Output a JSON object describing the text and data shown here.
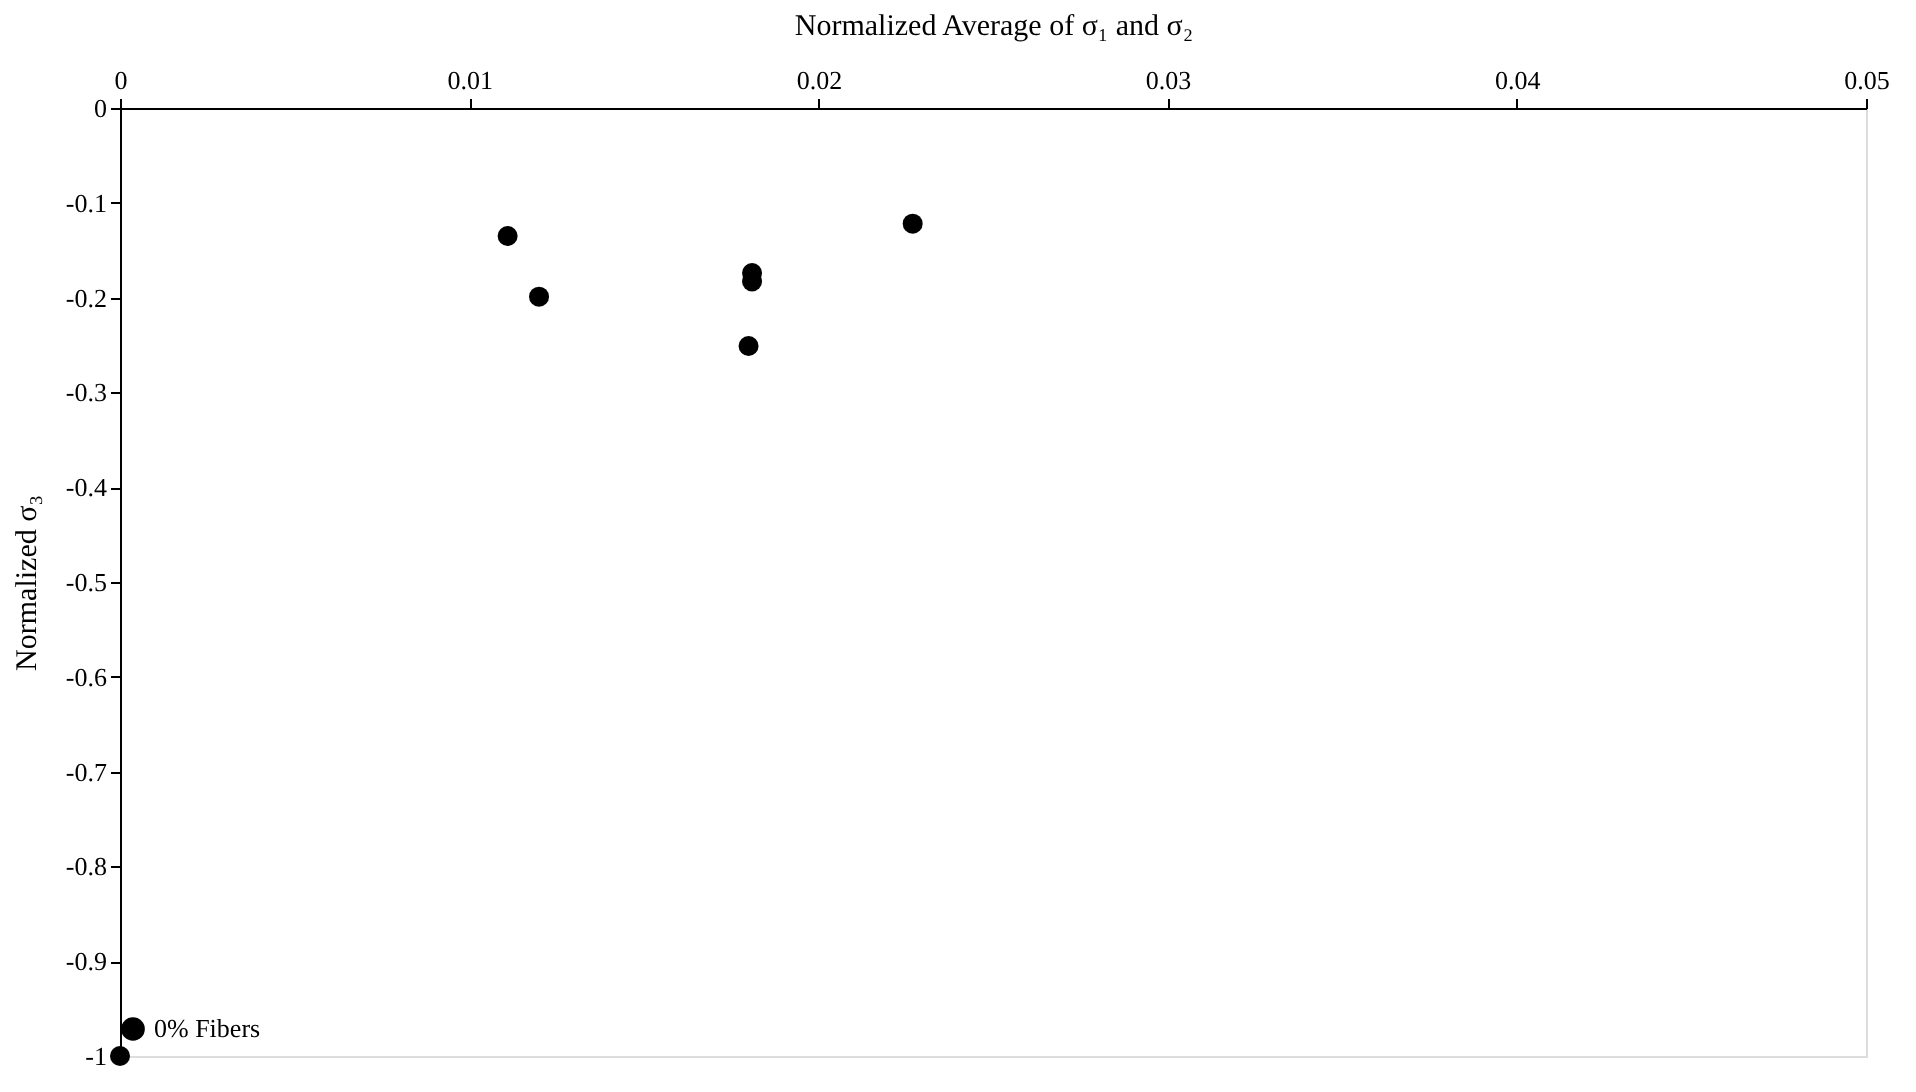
{
  "chart_data": {
    "type": "scatter",
    "xlabel": "Normalized Average of σ₁ and σ₂",
    "ylabel": "Normalized σ₃",
    "series": [
      {
        "name": "0% Fibers",
        "color": "#000000",
        "x": [
          0,
          0.0111,
          0.012,
          0.0181,
          0.0181,
          0.018,
          0.0227
        ],
        "values": [
          -1,
          -0.135,
          -0.199,
          -0.174,
          -0.183,
          -0.251,
          -0.122
        ]
      }
    ],
    "xlim": [
      0,
      0.05
    ],
    "xticks": [
      0,
      0.01,
      0.02,
      0.03,
      0.04,
      0.05
    ],
    "ylim": [
      -1,
      0
    ],
    "yticks": [
      0,
      -0.1,
      -0.2,
      -0.3,
      -0.4,
      -0.5,
      -0.6,
      -0.7,
      -0.8,
      -0.9,
      -1
    ],
    "grid": false,
    "legend": "bottom",
    "marker": "circle"
  }
}
